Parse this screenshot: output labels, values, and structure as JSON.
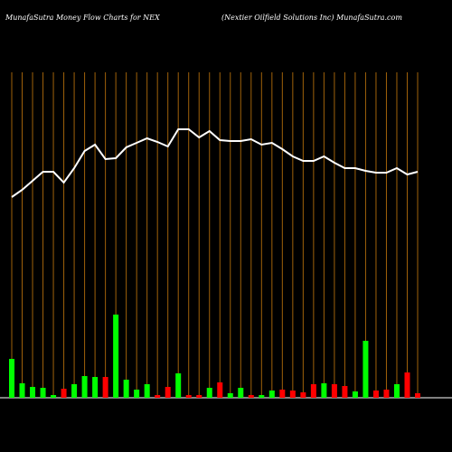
{
  "chart_data": {
    "type": "bar",
    "title": "MunafaSutra  Money Flow  Charts for NEX",
    "subtitle": "(Nextier Oilfield Solutions Inc) MunafaSutra.com",
    "categories": [
      null,
      null,
      null,
      null,
      null,
      null,
      null,
      null,
      null,
      null,
      null,
      null,
      null,
      null,
      null,
      null,
      null,
      null,
      null,
      null,
      null,
      null,
      null,
      null,
      null,
      null,
      null,
      null,
      null,
      null,
      null,
      null,
      null,
      null,
      null,
      null,
      null,
      null,
      null,
      null
    ],
    "values": [
      43,
      16,
      12,
      11,
      3,
      10,
      15,
      24,
      23,
      23,
      92,
      20,
      9,
      15,
      3,
      12,
      27,
      3,
      3,
      11,
      17,
      5,
      11,
      3,
      3,
      8,
      9,
      8,
      6,
      15,
      16,
      15,
      13,
      7,
      63,
      8,
      9,
      15,
      28,
      5
    ],
    "colors": [
      "#00ff00",
      "#00ff00",
      "#00ff00",
      "#00ff00",
      "#00ff00",
      "#ff0000",
      "#00ff00",
      "#00ff00",
      "#00ff00",
      "#ff0000",
      "#00ff00",
      "#00ff00",
      "#00ff00",
      "#00ff00",
      "#ff0000",
      "#ff0000",
      "#00ff00",
      "#ff0000",
      "#ff0000",
      "#00ff00",
      "#ff0000",
      "#00ff00",
      "#00ff00",
      "#ff0000",
      "#00ff00",
      "#00ff00",
      "#ff0000",
      "#ff0000",
      "#ff0000",
      "#ff0000",
      "#00ff00",
      "#ff0000",
      "#ff0000",
      "#00ff00",
      "#00ff00",
      "#ff0000",
      "#ff0000",
      "#00ff00",
      "#ff0000",
      "#ff0000"
    ],
    "line_values": [
      222,
      230,
      240,
      250,
      250,
      238,
      254,
      273,
      280,
      264,
      265,
      277,
      282,
      287,
      283,
      278,
      297,
      297,
      288,
      295,
      285,
      284,
      284,
      286,
      280,
      282,
      275,
      267,
      262,
      262,
      267,
      260,
      254,
      254,
      251,
      249,
      249,
      254,
      247,
      250
    ],
    "line_color": "#ffffff",
    "grid_color": "#a0620a",
    "ylim": [
      0,
      360
    ],
    "grid": true
  }
}
